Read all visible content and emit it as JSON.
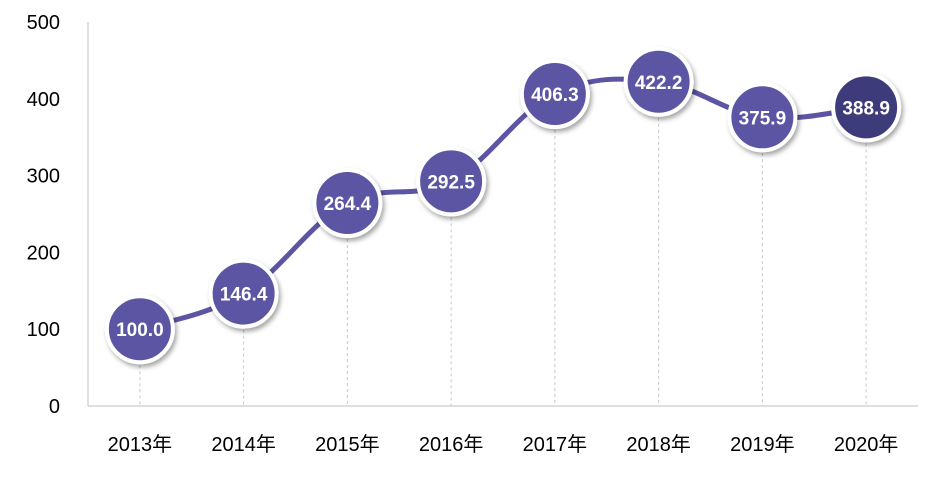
{
  "chart_data": {
    "type": "line",
    "categories": [
      "2013年",
      "2014年",
      "2015年",
      "2016年",
      "2017年",
      "2018年",
      "2019年",
      "2020年"
    ],
    "series": [
      {
        "values": [
          100.0,
          146.4,
          264.4,
          292.5,
          406.3,
          422.2,
          375.9,
          388.9
        ],
        "value_labels": [
          "100.0",
          "146.4",
          "264.4",
          "292.5",
          "406.3",
          "422.2",
          "375.9",
          "388.9"
        ]
      }
    ],
    "ylim": [
      0,
      500
    ],
    "y_ticks": [
      "0",
      "100",
      "200",
      "300",
      "400",
      "500"
    ],
    "grid": "vertical-dashed",
    "colors": {
      "line": "#5b55a3",
      "marker": "#5b55a3",
      "marker_last": "#3d3a7a",
      "marker_border": "#ffffff"
    }
  }
}
